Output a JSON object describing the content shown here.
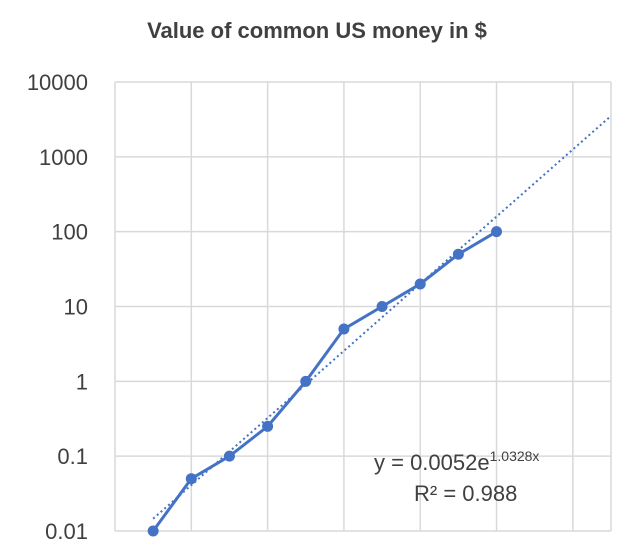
{
  "chart_data": {
    "type": "line",
    "title": "Value of common US money in $",
    "xlabel": "",
    "ylabel": "",
    "y_scale": "log",
    "ylim": [
      0.01,
      10000
    ],
    "xlim": [
      0,
      13
    ],
    "y_ticks": [
      "0.01",
      "0.1",
      "1",
      "10",
      "100",
      "1000",
      "10000"
    ],
    "grid": true,
    "series": [
      {
        "x": [
          1,
          2,
          3,
          4,
          5,
          6,
          7,
          8,
          9,
          10
        ],
        "values": [
          0.01,
          0.05,
          0.1,
          0.25,
          1,
          5,
          10,
          20,
          50,
          100
        ],
        "color": "#4472c4"
      }
    ],
    "trendline": {
      "type": "exponential",
      "a": 0.0052,
      "b": 1.0328,
      "r_squared": 0.988,
      "color": "#4472c4",
      "style": "dotted",
      "equation_prefix": "y = 0.0052e",
      "equation_exponent": "1.0328x",
      "r2_label": "R² = 0.988"
    }
  }
}
